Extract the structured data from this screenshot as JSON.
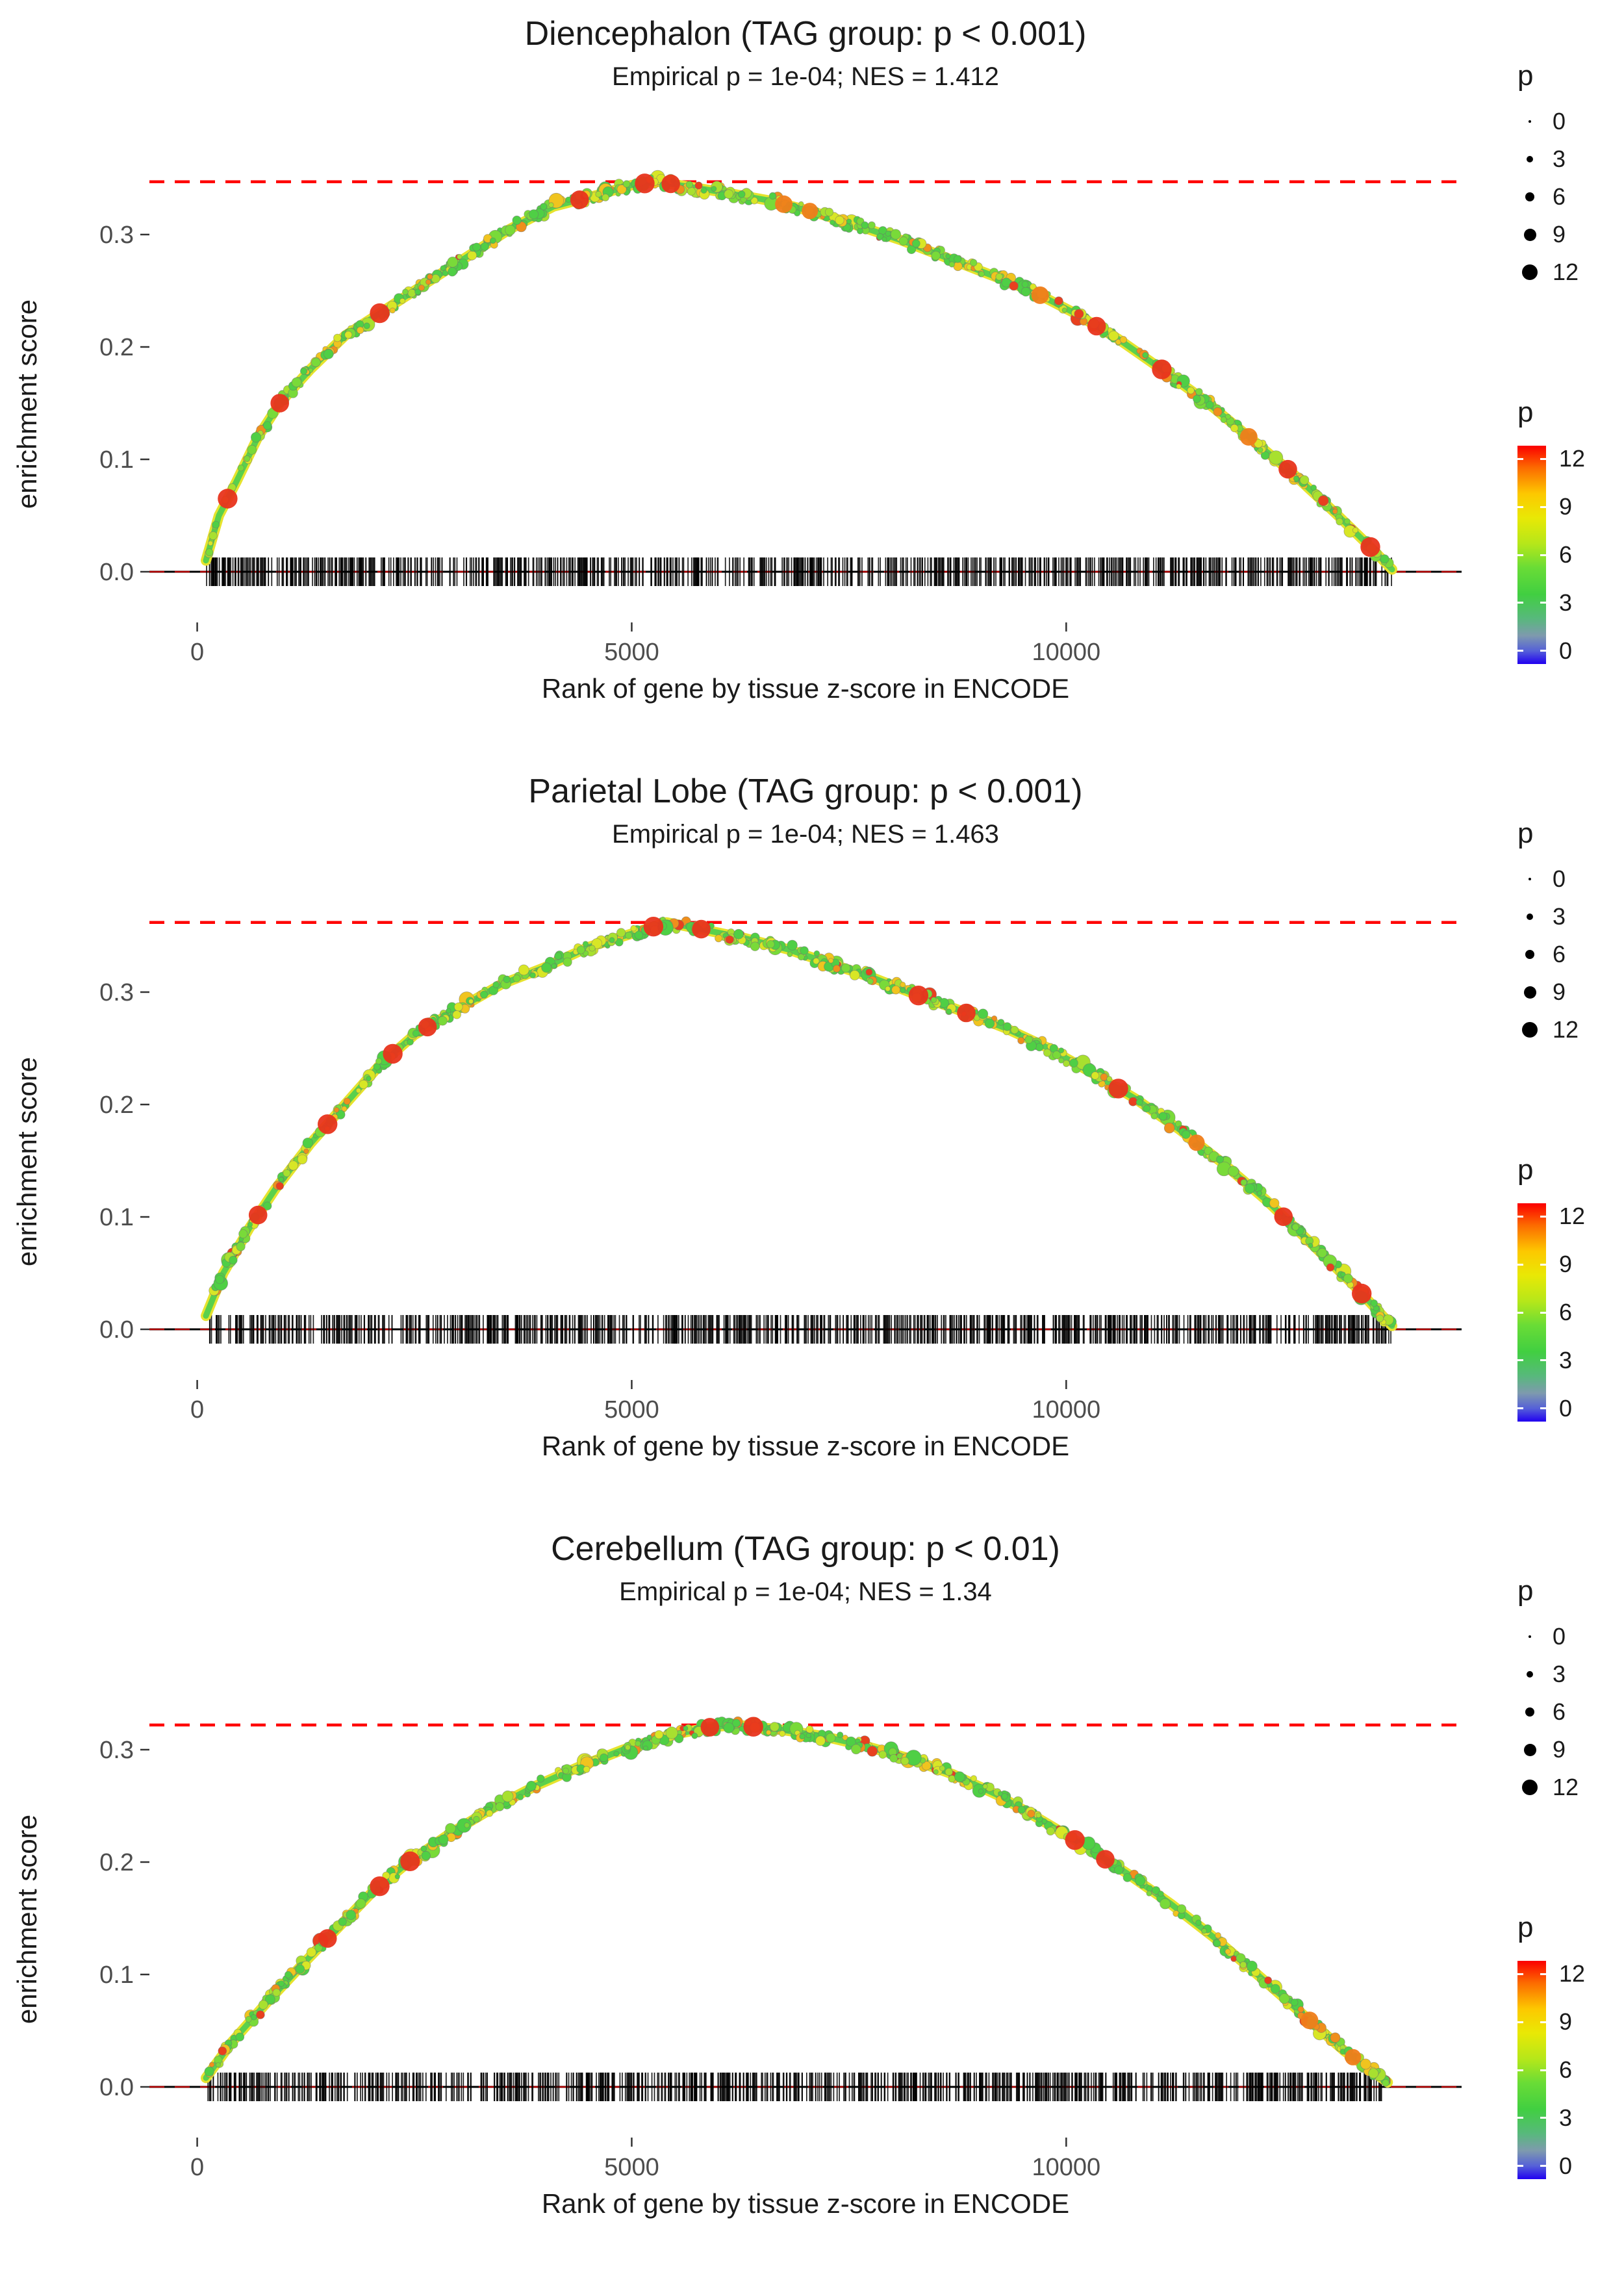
{
  "chart_data": [
    {
      "type": "scatter",
      "title": "Diencephalon (TAG group: p < 0.001)",
      "subtitle": "Empirical p = 1e-04; NES = 1.412",
      "xlabel": "Rank of gene by tissue z-score in ENCODE",
      "ylabel": "enrichment score",
      "xlim": [
        -550,
        14550
      ],
      "ylim": [
        -0.05,
        0.37
      ],
      "xticks": [
        {
          "v": 0,
          "label": "0"
        },
        {
          "v": 5000,
          "label": "5000"
        },
        {
          "v": 10000,
          "label": "10000"
        }
      ],
      "yticks": [
        {
          "v": 0.0,
          "label": "0.0"
        },
        {
          "v": 0.1,
          "label": "0.1"
        },
        {
          "v": 0.2,
          "label": "0.2"
        },
        {
          "v": 0.3,
          "label": "0.3"
        }
      ],
      "dashed_line_y": 0.347,
      "zero_line_y": 0,
      "curve": [
        [
          100,
          0.01
        ],
        [
          250,
          0.05
        ],
        [
          450,
          0.08
        ],
        [
          700,
          0.12
        ],
        [
          950,
          0.15
        ],
        [
          1300,
          0.18
        ],
        [
          1700,
          0.21
        ],
        [
          2100,
          0.23
        ],
        [
          2600,
          0.255
        ],
        [
          3100,
          0.28
        ],
        [
          3600,
          0.305
        ],
        [
          4100,
          0.325
        ],
        [
          4600,
          0.335
        ],
        [
          5000,
          0.344
        ],
        [
          5300,
          0.347
        ],
        [
          5700,
          0.342
        ],
        [
          6100,
          0.337
        ],
        [
          6600,
          0.33
        ],
        [
          7100,
          0.32
        ],
        [
          7600,
          0.308
        ],
        [
          8100,
          0.295
        ],
        [
          8600,
          0.28
        ],
        [
          9100,
          0.265
        ],
        [
          9600,
          0.25
        ],
        [
          10100,
          0.23
        ],
        [
          10600,
          0.207
        ],
        [
          11100,
          0.18
        ],
        [
          11600,
          0.152
        ],
        [
          12100,
          0.12
        ],
        [
          12600,
          0.088
        ],
        [
          13100,
          0.052
        ],
        [
          13500,
          0.022
        ],
        [
          13750,
          0.002
        ]
      ],
      "highlights": [
        {
          "x": 350,
          "p": 12
        },
        {
          "x": 950,
          "p": 11
        },
        {
          "x": 2100,
          "p": 12
        },
        {
          "x": 4400,
          "p": 11
        },
        {
          "x": 5150,
          "p": 12
        },
        {
          "x": 5450,
          "p": 11
        },
        {
          "x": 6750,
          "p": 10
        },
        {
          "x": 7050,
          "p": 9
        },
        {
          "x": 9700,
          "p": 10
        },
        {
          "x": 10350,
          "p": 11
        },
        {
          "x": 11100,
          "p": 12
        },
        {
          "x": 12100,
          "p": 10
        },
        {
          "x": 12550,
          "p": 11
        },
        {
          "x": 13500,
          "p": 12
        }
      ],
      "rug": {
        "x_min": 100,
        "x_max": 13750,
        "n": 900
      },
      "n_points": 550,
      "colors": {
        "threshold": "#ff0000",
        "zero_dashed": "#c00000",
        "high": "#e8341c"
      },
      "legend_size": {
        "title": "p",
        "items": [
          {
            "label": "0",
            "d": 4
          },
          {
            "label": "3",
            "d": 10
          },
          {
            "label": "6",
            "d": 14
          },
          {
            "label": "9",
            "d": 19
          },
          {
            "label": "12",
            "d": 24
          }
        ]
      },
      "legend_color": {
        "title": "p",
        "ticks": [
          {
            "label": "12",
            "f": 0.06
          },
          {
            "label": "9",
            "f": 0.28
          },
          {
            "label": "6",
            "f": 0.5
          },
          {
            "label": "3",
            "f": 0.72
          },
          {
            "label": "0",
            "f": 0.94
          }
        ],
        "gradient": [
          "#fb0000 0%",
          "#fc6a00 10%",
          "#fdc800 22%",
          "#e9e805 33%",
          "#b5e71a 45%",
          "#69dc36 56%",
          "#41cf41 68%",
          "#57b97b 79%",
          "#7e9aae 87%",
          "#5560d8 94%",
          "#2000f0 100%"
        ]
      }
    },
    {
      "type": "scatter",
      "title": "Parietal Lobe (TAG group: p < 0.001)",
      "subtitle": "Empirical p = 1e-04; NES = 1.463",
      "xlabel": "Rank of gene by tissue z-score in ENCODE",
      "ylabel": "enrichment score",
      "xlim": [
        -550,
        14550
      ],
      "ylim": [
        -0.05,
        0.38
      ],
      "xticks": [
        {
          "v": 0,
          "label": "0"
        },
        {
          "v": 5000,
          "label": "5000"
        },
        {
          "v": 10000,
          "label": "10000"
        }
      ],
      "yticks": [
        {
          "v": 0.0,
          "label": "0.0"
        },
        {
          "v": 0.1,
          "label": "0.1"
        },
        {
          "v": 0.2,
          "label": "0.2"
        },
        {
          "v": 0.3,
          "label": "0.3"
        }
      ],
      "dashed_line_y": 0.362,
      "zero_line_y": 0,
      "curve": [
        [
          100,
          0.012
        ],
        [
          300,
          0.05
        ],
        [
          600,
          0.09
        ],
        [
          900,
          0.125
        ],
        [
          1300,
          0.165
        ],
        [
          1700,
          0.2
        ],
        [
          2100,
          0.235
        ],
        [
          2500,
          0.262
        ],
        [
          3000,
          0.285
        ],
        [
          3500,
          0.307
        ],
        [
          4000,
          0.322
        ],
        [
          4500,
          0.34
        ],
        [
          5000,
          0.352
        ],
        [
          5400,
          0.362
        ],
        [
          5800,
          0.356
        ],
        [
          6300,
          0.348
        ],
        [
          6800,
          0.338
        ],
        [
          7300,
          0.325
        ],
        [
          7800,
          0.312
        ],
        [
          8300,
          0.297
        ],
        [
          8800,
          0.283
        ],
        [
          9300,
          0.268
        ],
        [
          9800,
          0.25
        ],
        [
          10300,
          0.228
        ],
        [
          10800,
          0.205
        ],
        [
          11300,
          0.178
        ],
        [
          11800,
          0.148
        ],
        [
          12300,
          0.115
        ],
        [
          12800,
          0.078
        ],
        [
          13300,
          0.04
        ],
        [
          13750,
          0.003
        ]
      ],
      "highlights": [
        {
          "x": 700,
          "p": 11
        },
        {
          "x": 1500,
          "p": 12
        },
        {
          "x": 2250,
          "p": 12
        },
        {
          "x": 2650,
          "p": 11
        },
        {
          "x": 5250,
          "p": 12
        },
        {
          "x": 5800,
          "p": 11
        },
        {
          "x": 8300,
          "p": 12
        },
        {
          "x": 8850,
          "p": 11
        },
        {
          "x": 10600,
          "p": 12
        },
        {
          "x": 11500,
          "p": 9
        },
        {
          "x": 12500,
          "p": 11
        },
        {
          "x": 13400,
          "p": 12
        }
      ],
      "rug": {
        "x_min": 100,
        "x_max": 13750,
        "n": 900
      },
      "n_points": 550,
      "colors": {
        "threshold": "#ff0000",
        "zero_dashed": "#c00000",
        "high": "#e8341c"
      },
      "legend_size": {
        "title": "p",
        "items": [
          {
            "label": "0",
            "d": 4
          },
          {
            "label": "3",
            "d": 10
          },
          {
            "label": "6",
            "d": 14
          },
          {
            "label": "9",
            "d": 19
          },
          {
            "label": "12",
            "d": 24
          }
        ]
      },
      "legend_color": {
        "title": "p",
        "ticks": [
          {
            "label": "12",
            "f": 0.06
          },
          {
            "label": "9",
            "f": 0.28
          },
          {
            "label": "6",
            "f": 0.5
          },
          {
            "label": "3",
            "f": 0.72
          },
          {
            "label": "0",
            "f": 0.94
          }
        ],
        "gradient": [
          "#fb0000 0%",
          "#fc6a00 10%",
          "#fdc800 22%",
          "#e9e805 33%",
          "#b5e71a 45%",
          "#69dc36 56%",
          "#41cf41 68%",
          "#57b97b 79%",
          "#7e9aae 87%",
          "#5560d8 94%",
          "#2000f0 100%"
        ]
      }
    },
    {
      "type": "scatter",
      "title": "Cerebellum (TAG group: p < 0.01)",
      "subtitle": "Empirical p = 1e-04; NES = 1.34",
      "xlabel": "Rank of gene by tissue z-score in ENCODE",
      "ylabel": "enrichment score",
      "xlim": [
        -550,
        14550
      ],
      "ylim": [
        -0.05,
        0.34
      ],
      "xticks": [
        {
          "v": 0,
          "label": "0"
        },
        {
          "v": 5000,
          "label": "5000"
        },
        {
          "v": 10000,
          "label": "10000"
        }
      ],
      "yticks": [
        {
          "v": 0.0,
          "label": "0.0"
        },
        {
          "v": 0.1,
          "label": "0.1"
        },
        {
          "v": 0.2,
          "label": "0.2"
        },
        {
          "v": 0.3,
          "label": "0.3"
        }
      ],
      "dashed_line_y": 0.322,
      "zero_line_y": 0,
      "curve": [
        [
          100,
          0.008
        ],
        [
          400,
          0.04
        ],
        [
          800,
          0.075
        ],
        [
          1200,
          0.108
        ],
        [
          1600,
          0.14
        ],
        [
          2000,
          0.172
        ],
        [
          2400,
          0.198
        ],
        [
          2900,
          0.225
        ],
        [
          3400,
          0.248
        ],
        [
          3900,
          0.268
        ],
        [
          4400,
          0.285
        ],
        [
          4900,
          0.3
        ],
        [
          5400,
          0.312
        ],
        [
          5900,
          0.32
        ],
        [
          6200,
          0.322
        ],
        [
          6700,
          0.318
        ],
        [
          7200,
          0.312
        ],
        [
          7700,
          0.303
        ],
        [
          8200,
          0.292
        ],
        [
          8700,
          0.278
        ],
        [
          9200,
          0.26
        ],
        [
          9700,
          0.238
        ],
        [
          10200,
          0.215
        ],
        [
          10700,
          0.19
        ],
        [
          11200,
          0.163
        ],
        [
          11700,
          0.133
        ],
        [
          12200,
          0.1
        ],
        [
          12700,
          0.066
        ],
        [
          13200,
          0.032
        ],
        [
          13700,
          0.004
        ]
      ],
      "highlights": [
        {
          "x": 1500,
          "p": 11
        },
        {
          "x": 2100,
          "p": 12
        },
        {
          "x": 2450,
          "p": 12
        },
        {
          "x": 5900,
          "p": 11
        },
        {
          "x": 6400,
          "p": 12
        },
        {
          "x": 10100,
          "p": 12
        },
        {
          "x": 10450,
          "p": 11
        },
        {
          "x": 12800,
          "p": 10
        },
        {
          "x": 13300,
          "p": 9
        }
      ],
      "rug": {
        "x_min": 100,
        "x_max": 13700,
        "n": 900
      },
      "n_points": 550,
      "colors": {
        "threshold": "#ff0000",
        "zero_dashed": "#c00000",
        "high": "#e8341c"
      },
      "legend_size": {
        "title": "p",
        "items": [
          {
            "label": "0",
            "d": 4
          },
          {
            "label": "3",
            "d": 10
          },
          {
            "label": "6",
            "d": 14
          },
          {
            "label": "9",
            "d": 19
          },
          {
            "label": "12",
            "d": 24
          }
        ]
      },
      "legend_color": {
        "title": "p",
        "ticks": [
          {
            "label": "12",
            "f": 0.06
          },
          {
            "label": "9",
            "f": 0.28
          },
          {
            "label": "6",
            "f": 0.5
          },
          {
            "label": "3",
            "f": 0.72
          },
          {
            "label": "0",
            "f": 0.94
          }
        ],
        "gradient": [
          "#fb0000 0%",
          "#fc6a00 10%",
          "#fdc800 22%",
          "#e9e805 33%",
          "#b5e71a 45%",
          "#69dc36 56%",
          "#41cf41 68%",
          "#57b97b 79%",
          "#7e9aae 87%",
          "#5560d8 94%",
          "#2000f0 100%"
        ]
      }
    }
  ]
}
